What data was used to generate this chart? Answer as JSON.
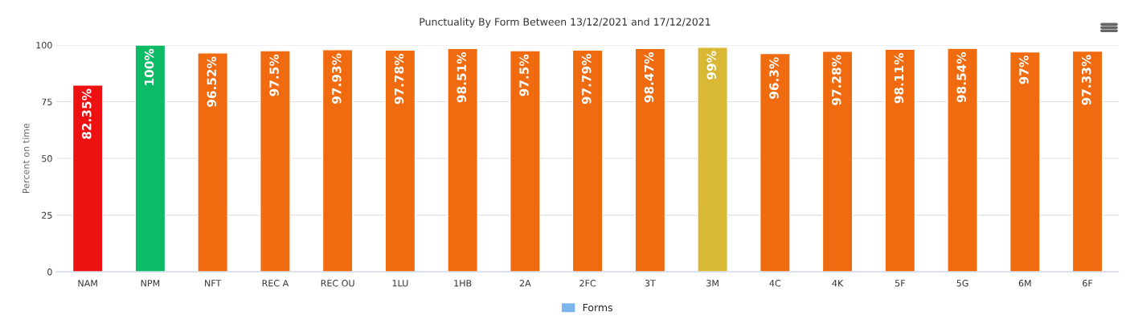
{
  "chart_data": {
    "type": "bar",
    "title": "Punctuality By Form Between 13/12/2021 and 17/12/2021",
    "ylabel": "Percent on time",
    "categories": [
      "NAM",
      "NPM",
      "NFT",
      "REC A",
      "REC OU",
      "1LU",
      "1HB",
      "2A",
      "2FC",
      "3T",
      "3M",
      "4C",
      "4K",
      "5F",
      "5G",
      "6M",
      "6F"
    ],
    "series": [
      {
        "name": "Forms",
        "color": "#7cb5ec",
        "values": [
          82.35,
          100,
          96.52,
          97.5,
          97.93,
          97.78,
          98.51,
          97.5,
          97.79,
          98.47,
          99,
          96.3,
          97.28,
          98.11,
          98.54,
          97,
          97.33
        ],
        "colors": [
          "#ee1111",
          "#0dbb66",
          "#f06a0f",
          "#f06a0f",
          "#f06a0f",
          "#f06a0f",
          "#f06a0f",
          "#f06a0f",
          "#f06a0f",
          "#f06a0f",
          "#d9b833",
          "#f06a0f",
          "#f06a0f",
          "#f06a0f",
          "#f06a0f",
          "#f06a0f",
          "#f06a0f"
        ],
        "value_labels": [
          "82.35%",
          "100%",
          "96.52%",
          "97.5%",
          "97.93%",
          "97.78%",
          "98.51%",
          "97.5%",
          "97.79%",
          "98.47%",
          "99%",
          "96.3%",
          "97.28%",
          "98.11%",
          "98.54%",
          "97%",
          "97.33%"
        ]
      }
    ],
    "ylim": [
      0,
      100
    ],
    "yticks": [
      0,
      25,
      50,
      75,
      100
    ],
    "grid": "y",
    "legend": "bottom"
  }
}
